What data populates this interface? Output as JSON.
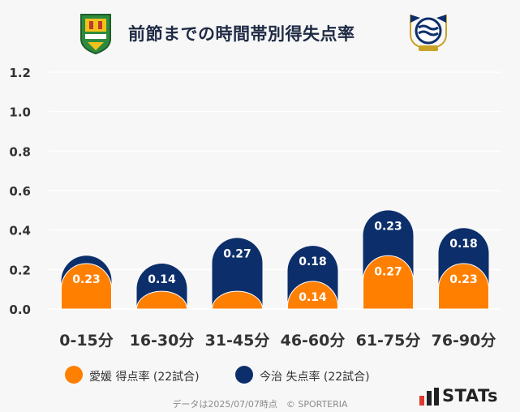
{
  "title": "前節までの時間帯別得失点率",
  "footer": "データは2025/07/07時点　© SPORTERIA",
  "brand": "STATs",
  "colors": {
    "ehime": "#ff8000",
    "imabari": "#0c2f6b",
    "grid": "#ffffff",
    "axis_text": "#333333"
  },
  "chart_data": {
    "type": "bar",
    "categories": [
      "0-15分",
      "16-30分",
      "31-45分",
      "46-60分",
      "61-75分",
      "76-90分"
    ],
    "series": [
      {
        "name": "愛媛 得点率 (22試合)",
        "values": [
          0.23,
          0.09,
          0.09,
          0.14,
          0.27,
          0.23
        ]
      },
      {
        "name": "今治 失点率 (22試合)",
        "values": [
          0.27,
          0.23,
          0.36,
          0.32,
          0.5,
          0.41
        ]
      }
    ],
    "data_labels": {
      "ehime": [
        "0.23",
        "",
        "",
        "0.14",
        "0.27",
        "0.23"
      ],
      "imabari": [
        "",
        "0.14",
        "0.27",
        "0.18",
        "0.23",
        "0.18"
      ]
    },
    "yticks": [
      "0.0",
      "0.2",
      "0.4",
      "0.6",
      "0.8",
      "1.0",
      "1.2"
    ],
    "ylim": [
      0,
      1.2
    ],
    "grid": true,
    "legend": "bottom"
  }
}
